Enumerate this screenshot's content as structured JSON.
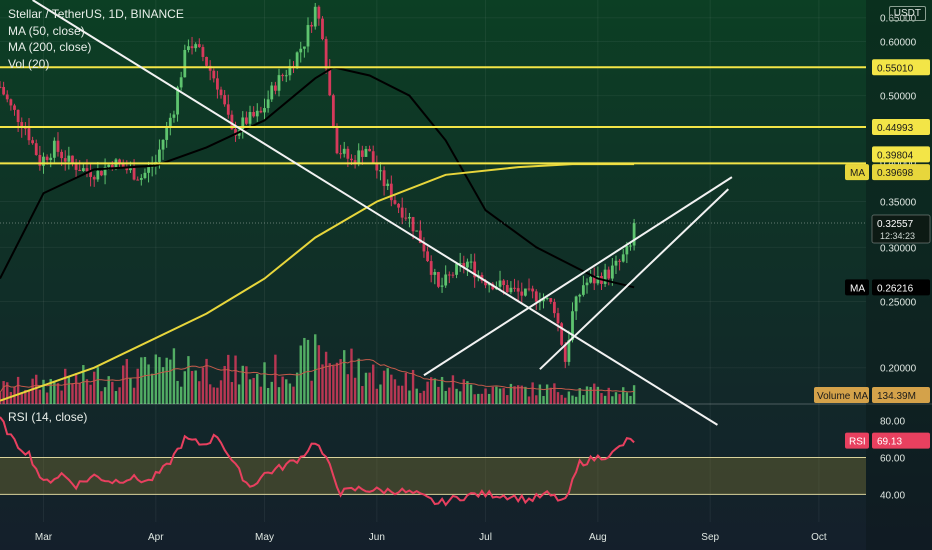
{
  "header": {
    "title": "Stellar / TetherUS, 1D, BINANCE",
    "indicators": [
      "MA (50, close)",
      "MA (200, close)",
      "Vol (20)"
    ],
    "unit": "USDT"
  },
  "rsi_panel": {
    "title": "RSI (14, close)"
  },
  "colors": {
    "background_top": "#0c3f24",
    "background_bottom": "#141f2b",
    "up": "#5ec46f",
    "down": "#d63a5b",
    "ma50": "#000000",
    "ma200": "#e7d63c",
    "level_line": "#f3e547",
    "trendline": "#f2f2f2",
    "rsi_line": "#e8405f",
    "rsi_band": "#8a7d33",
    "volume_ma": "#c45a4a"
  },
  "chart_data": [
    {
      "type": "candlestick",
      "title": "Stellar / TetherUS, 1D, BINANCE",
      "x_axis": {
        "type": "date",
        "range": [
          "2020-02-18",
          "2020-10-14"
        ],
        "tick_labels": [
          {
            "date": "2020-03-01",
            "label": "Mar"
          },
          {
            "date": "2020-04-01",
            "label": "Apr"
          },
          {
            "date": "2020-05-01",
            "label": "May"
          },
          {
            "date": "2020-06-01",
            "label": "Jun"
          },
          {
            "date": "2020-07-01",
            "label": "Jul"
          },
          {
            "date": "2020-08-01",
            "label": "Aug"
          },
          {
            "date": "2020-09-01",
            "label": "Sep"
          },
          {
            "date": "2020-10-01",
            "label": "Oct"
          }
        ]
      },
      "y_axis": {
        "scale": "log",
        "range": [
          0.177,
          0.69
        ],
        "ticks": [
          "0.20000",
          "0.25000",
          "0.30000",
          "0.35000",
          "0.40000",
          "0.45000",
          "0.50000",
          "0.55000",
          "0.60000",
          "0.65000"
        ],
        "tick_values": [
          0.2,
          0.25,
          0.3,
          0.35,
          0.4,
          0.45,
          0.5,
          0.55,
          0.6,
          0.65
        ]
      },
      "price_path": [
        {
          "date": "2020-02-18",
          "close": 0.515
        },
        {
          "date": "2020-02-21",
          "close": 0.48
        },
        {
          "date": "2020-02-25",
          "close": 0.45
        },
        {
          "date": "2020-02-29",
          "close": 0.4
        },
        {
          "date": "2020-03-04",
          "close": 0.42
        },
        {
          "date": "2020-03-08",
          "close": 0.4
        },
        {
          "date": "2020-03-12",
          "close": 0.39
        },
        {
          "date": "2020-03-16",
          "close": 0.385
        },
        {
          "date": "2020-03-20",
          "close": 0.4
        },
        {
          "date": "2020-03-24",
          "close": 0.39
        },
        {
          "date": "2020-03-28",
          "close": 0.38
        },
        {
          "date": "2020-04-01",
          "close": 0.4
        },
        {
          "date": "2020-04-06",
          "close": 0.48
        },
        {
          "date": "2020-04-10",
          "close": 0.6
        },
        {
          "date": "2020-04-14",
          "close": 0.57
        },
        {
          "date": "2020-04-18",
          "close": 0.52
        },
        {
          "date": "2020-04-22",
          "close": 0.44
        },
        {
          "date": "2020-04-26",
          "close": 0.46
        },
        {
          "date": "2020-04-30",
          "close": 0.47
        },
        {
          "date": "2020-05-04",
          "close": 0.52
        },
        {
          "date": "2020-05-08",
          "close": 0.55
        },
        {
          "date": "2020-05-12",
          "close": 0.6
        },
        {
          "date": "2020-05-15",
          "close": 0.67
        },
        {
          "date": "2020-05-17",
          "close": 0.62
        },
        {
          "date": "2020-05-19",
          "close": 0.5
        },
        {
          "date": "2020-05-21",
          "close": 0.42
        },
        {
          "date": "2020-05-25",
          "close": 0.4
        },
        {
          "date": "2020-05-29",
          "close": 0.42
        },
        {
          "date": "2020-06-02",
          "close": 0.38
        },
        {
          "date": "2020-06-06",
          "close": 0.35
        },
        {
          "date": "2020-06-10",
          "close": 0.33
        },
        {
          "date": "2020-06-14",
          "close": 0.3
        },
        {
          "date": "2020-06-18",
          "close": 0.26
        },
        {
          "date": "2020-06-22",
          "close": 0.275
        },
        {
          "date": "2020-06-26",
          "close": 0.285
        },
        {
          "date": "2020-06-30",
          "close": 0.27
        },
        {
          "date": "2020-07-04",
          "close": 0.265
        },
        {
          "date": "2020-07-08",
          "close": 0.26
        },
        {
          "date": "2020-07-12",
          "close": 0.255
        },
        {
          "date": "2020-07-16",
          "close": 0.255
        },
        {
          "date": "2020-07-20",
          "close": 0.245
        },
        {
          "date": "2020-07-23",
          "close": 0.205
        },
        {
          "date": "2020-07-25",
          "close": 0.24
        },
        {
          "date": "2020-07-28",
          "close": 0.265
        },
        {
          "date": "2020-08-01",
          "close": 0.27
        },
        {
          "date": "2020-08-04",
          "close": 0.275
        },
        {
          "date": "2020-08-07",
          "close": 0.285
        },
        {
          "date": "2020-08-10",
          "close": 0.3
        },
        {
          "date": "2020-08-11",
          "close": 0.3256
        }
      ],
      "moving_averages": [
        {
          "name": "MA (50, close)",
          "points": [
            {
              "date": "2020-02-18",
              "value": 0.27
            },
            {
              "date": "2020-03-01",
              "value": 0.36
            },
            {
              "date": "2020-03-15",
              "value": 0.39
            },
            {
              "date": "2020-04-01",
              "value": 0.395
            },
            {
              "date": "2020-04-15",
              "value": 0.42
            },
            {
              "date": "2020-05-01",
              "value": 0.46
            },
            {
              "date": "2020-05-15",
              "value": 0.53
            },
            {
              "date": "2020-05-20",
              "value": 0.55
            },
            {
              "date": "2020-05-30",
              "value": 0.535
            },
            {
              "date": "2020-06-10",
              "value": 0.5
            },
            {
              "date": "2020-06-20",
              "value": 0.43
            },
            {
              "date": "2020-07-01",
              "value": 0.34
            },
            {
              "date": "2020-07-15",
              "value": 0.3
            },
            {
              "date": "2020-08-01",
              "value": 0.27
            },
            {
              "date": "2020-08-11",
              "value": 0.2622
            }
          ]
        },
        {
          "name": "MA (200, close)",
          "points": [
            {
              "date": "2020-02-18",
              "value": 0.179
            },
            {
              "date": "2020-03-15",
              "value": 0.2
            },
            {
              "date": "2020-04-15",
              "value": 0.24
            },
            {
              "date": "2020-05-01",
              "value": 0.27
            },
            {
              "date": "2020-05-15",
              "value": 0.31
            },
            {
              "date": "2020-06-01",
              "value": 0.35
            },
            {
              "date": "2020-06-20",
              "value": 0.383
            },
            {
              "date": "2020-07-10",
              "value": 0.393
            },
            {
              "date": "2020-07-25",
              "value": 0.397
            },
            {
              "date": "2020-08-11",
              "value": 0.397
            }
          ]
        }
      ],
      "horizontal_levels": [
        0.5501,
        0.44993,
        0.39804
      ],
      "trendlines": [
        {
          "from": {
            "date": "2020-02-27",
            "price": 0.69
          },
          "to": {
            "date": "2020-09-03",
            "price": 0.165
          }
        },
        {
          "from": {
            "date": "2020-06-14",
            "price": 0.195
          },
          "to": {
            "date": "2020-09-07",
            "price": 0.38
          }
        },
        {
          "from": {
            "date": "2020-07-16",
            "price": 0.199
          },
          "to": {
            "date": "2020-09-06",
            "price": 0.365
          }
        }
      ],
      "price_labels": [
        {
          "value": 0.5501,
          "text": "0.55010",
          "kind": "level"
        },
        {
          "value": 0.44993,
          "text": "0.44993",
          "kind": "level"
        },
        {
          "value": 0.39804,
          "text": "0.39804",
          "kind": "level"
        },
        {
          "value": 0.39698,
          "text": "0.39698",
          "tag": "MA",
          "kind": "ma200"
        },
        {
          "value": 0.32557,
          "text": "0.32557",
          "sub": "12:34:23",
          "kind": "last"
        },
        {
          "value": 0.26216,
          "text": "0.26216",
          "tag": "MA",
          "kind": "ma50"
        }
      ],
      "volume_label": {
        "tag": "Volume MA",
        "text": "134.39M"
      },
      "volume_profile": [
        {
          "date": "2020-02-18",
          "level": 0.25
        },
        {
          "date": "2020-03-12",
          "level": 0.4
        },
        {
          "date": "2020-04-10",
          "level": 0.6
        },
        {
          "date": "2020-05-01",
          "level": 0.45
        },
        {
          "date": "2020-05-18",
          "level": 0.8
        },
        {
          "date": "2020-06-01",
          "level": 0.45
        },
        {
          "date": "2020-07-01",
          "level": 0.25
        },
        {
          "date": "2020-08-11",
          "level": 0.2
        }
      ]
    },
    {
      "type": "line",
      "title": "RSI (14, close)",
      "y_axis": {
        "range": [
          25,
          89
        ],
        "ticks": [
          "40.00",
          "60.00",
          "80.00"
        ],
        "tick_values": [
          40,
          60,
          80
        ],
        "band": [
          40,
          60
        ]
      },
      "series": [
        {
          "name": "RSI (14, close)",
          "points": [
            {
              "date": "2020-02-18",
              "value": 81
            },
            {
              "date": "2020-02-22",
              "value": 68
            },
            {
              "date": "2020-02-26",
              "value": 62
            },
            {
              "date": "2020-03-01",
              "value": 46
            },
            {
              "date": "2020-03-06",
              "value": 51
            },
            {
              "date": "2020-03-10",
              "value": 45
            },
            {
              "date": "2020-03-15",
              "value": 50
            },
            {
              "date": "2020-03-20",
              "value": 47
            },
            {
              "date": "2020-03-25",
              "value": 49
            },
            {
              "date": "2020-03-30",
              "value": 47
            },
            {
              "date": "2020-04-04",
              "value": 55
            },
            {
              "date": "2020-04-09",
              "value": 70
            },
            {
              "date": "2020-04-14",
              "value": 67
            },
            {
              "date": "2020-04-18",
              "value": 72
            },
            {
              "date": "2020-04-23",
              "value": 55
            },
            {
              "date": "2020-04-27",
              "value": 44
            },
            {
              "date": "2020-05-01",
              "value": 51
            },
            {
              "date": "2020-05-06",
              "value": 55
            },
            {
              "date": "2020-05-11",
              "value": 60
            },
            {
              "date": "2020-05-15",
              "value": 69
            },
            {
              "date": "2020-05-19",
              "value": 55
            },
            {
              "date": "2020-05-22",
              "value": 41
            },
            {
              "date": "2020-05-27",
              "value": 43
            },
            {
              "date": "2020-06-02",
              "value": 42
            },
            {
              "date": "2020-06-07",
              "value": 42
            },
            {
              "date": "2020-06-12",
              "value": 40
            },
            {
              "date": "2020-06-18",
              "value": 35
            },
            {
              "date": "2020-06-23",
              "value": 38
            },
            {
              "date": "2020-06-28",
              "value": 40
            },
            {
              "date": "2020-07-03",
              "value": 40
            },
            {
              "date": "2020-07-08",
              "value": 39
            },
            {
              "date": "2020-07-13",
              "value": 37
            },
            {
              "date": "2020-07-18",
              "value": 40
            },
            {
              "date": "2020-07-23",
              "value": 36
            },
            {
              "date": "2020-07-27",
              "value": 57
            },
            {
              "date": "2020-08-01",
              "value": 60
            },
            {
              "date": "2020-08-05",
              "value": 62
            },
            {
              "date": "2020-08-09",
              "value": 69
            },
            {
              "date": "2020-08-11",
              "value": 69.13
            }
          ]
        }
      ],
      "last_label": {
        "tag": "RSI",
        "text": "69.13"
      }
    }
  ]
}
